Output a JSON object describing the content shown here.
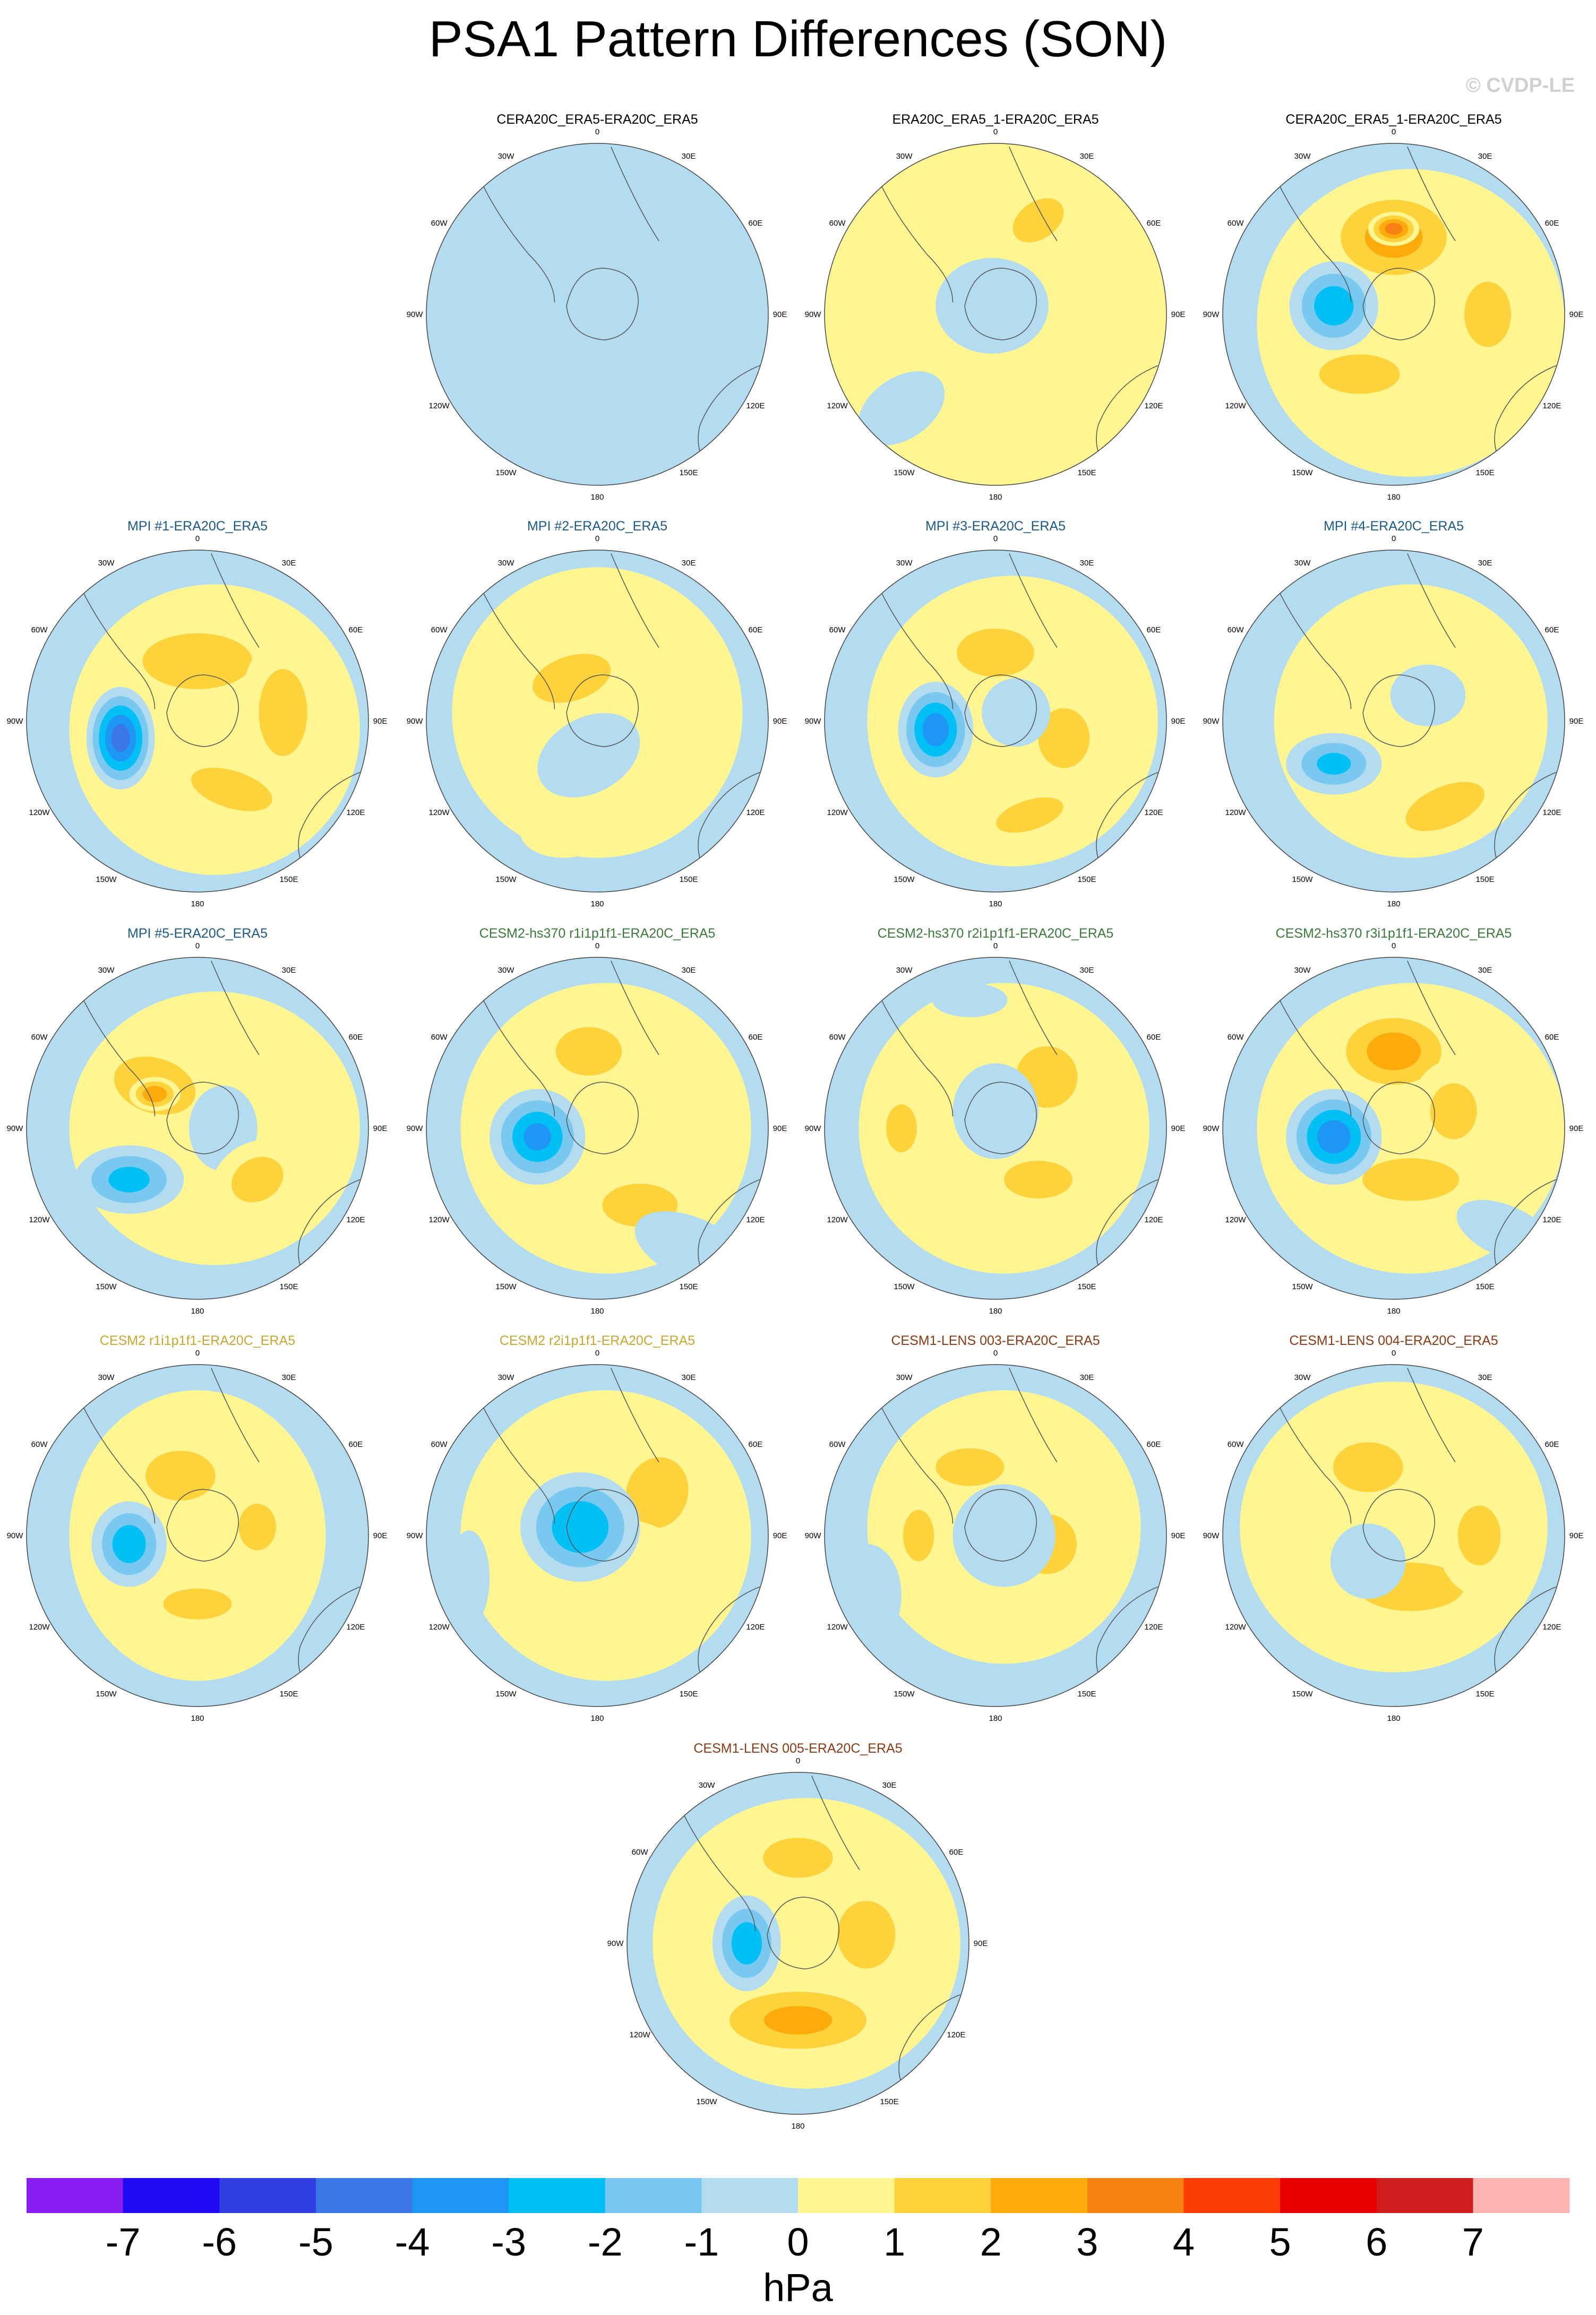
{
  "figure": {
    "title": "PSA1 Pattern Differences (SON)",
    "watermark": "© CVDP-LE",
    "longitude_labels": [
      "0",
      "30E",
      "60E",
      "90E",
      "120E",
      "150E",
      "180",
      "150W",
      "120W",
      "90W",
      "60W",
      "30W"
    ]
  },
  "colorbar": {
    "units": "hPa",
    "tick_labels": [
      "-7",
      "-6",
      "-5",
      "-4",
      "-3",
      "-2",
      "-1",
      "0",
      "1",
      "2",
      "3",
      "4",
      "5",
      "6",
      "7"
    ],
    "colors": [
      "#8a1ef2",
      "#1e0af0",
      "#2e3fe0",
      "#3a78e8",
      "#1e96f5",
      "#00c0f5",
      "#78c8f0",
      "#b4dcf0",
      "#fff591",
      "#fdd23a",
      "#fcab0a",
      "#f98012",
      "#fa3c05",
      "#e60000",
      "#d01e1e",
      "#ffb4b4"
    ]
  },
  "panels": [
    {
      "title": "CERA20C_ERA5-ERA20C_ERA5",
      "title_color": "#000000",
      "blobs": [
        [
          0.05,
          0.55,
          0.7,
          0.4,
          0.6,
          -1
        ],
        [
          0.08,
          0.22,
          0.3,
          0.22,
          0.1,
          -1.5
        ],
        [
          -0.68,
          0.18,
          0.22,
          0.5,
          0,
          -1
        ]
      ]
    },
    {
      "title": "ERA20C_ERA5_1-ERA20C_ERA5",
      "title_color": "#000000",
      "blobs": [
        [
          0,
          0,
          1,
          1,
          0,
          1
        ],
        [
          0.25,
          0.55,
          0.3,
          0.2,
          0.6,
          2.2
        ],
        [
          -0.3,
          -0.1,
          0.18,
          0.3,
          0,
          1.8
        ],
        [
          0.45,
          -0.3,
          0.22,
          0.28,
          0.4,
          1.8
        ],
        [
          -0.02,
          0.05,
          0.33,
          0.28,
          0,
          -1.5
        ],
        [
          -0.55,
          -0.55,
          0.28,
          0.18,
          0.6,
          -1.6
        ]
      ]
    },
    {
      "title": "CERA20C_ERA5_1-ERA20C_ERA5",
      "title_color": "#000000",
      "blobs": [
        [
          0.1,
          -0.05,
          0.9,
          0.9,
          0,
          1.1
        ],
        [
          0.0,
          0.45,
          0.45,
          0.32,
          0,
          3.2
        ],
        [
          0.0,
          0.5,
          0.15,
          0.1,
          0,
          4.6
        ],
        [
          0.55,
          0.0,
          0.25,
          0.35,
          0,
          2.2
        ],
        [
          -0.2,
          -0.35,
          0.45,
          0.22,
          0,
          2.1
        ],
        [
          -0.35,
          0.05,
          0.26,
          0.26,
          0,
          -3.6
        ],
        [
          -0.85,
          0.6,
          0.2,
          0.3,
          0,
          -1
        ]
      ]
    },
    {
      "title": "MPI #1-ERA20C_ERA5",
      "title_color": "#1a5a8c",
      "blobs": [
        [
          0.1,
          -0.05,
          0.85,
          0.85,
          0,
          1
        ],
        [
          0.0,
          0.35,
          0.55,
          0.28,
          0,
          2.4
        ],
        [
          0.5,
          0.05,
          0.25,
          0.45,
          0,
          2.3
        ],
        [
          0.2,
          -0.4,
          0.45,
          0.2,
          -0.3,
          2.2
        ],
        [
          -0.45,
          -0.1,
          0.2,
          0.3,
          0,
          -5.5
        ],
        [
          -0.45,
          0.78,
          0.22,
          0.1,
          0,
          -1.6
        ]
      ]
    },
    {
      "title": "MPI #2-ERA20C_ERA5",
      "title_color": "#1a5a8c",
      "blobs": [
        [
          0.0,
          0.05,
          0.85,
          0.85,
          0,
          1
        ],
        [
          -0.15,
          0.25,
          0.45,
          0.25,
          0.3,
          2.1
        ],
        [
          0.4,
          0.3,
          0.3,
          0.25,
          -0.5,
          1.9
        ],
        [
          0.05,
          -0.3,
          0.4,
          0.22,
          0,
          1.6
        ],
        [
          -0.05,
          -0.2,
          0.32,
          0.22,
          0.5,
          -1.6
        ],
        [
          -0.2,
          -0.65,
          0.25,
          0.15,
          0,
          1.8
        ]
      ]
    },
    {
      "title": "MPI #3-ERA20C_ERA5",
      "title_color": "#1a5a8c",
      "blobs": [
        [
          0.1,
          0.0,
          0.85,
          0.85,
          0,
          1
        ],
        [
          0.0,
          0.4,
          0.4,
          0.25,
          0,
          2.3
        ],
        [
          0.4,
          -0.1,
          0.3,
          0.35,
          0,
          2.0
        ],
        [
          0.2,
          -0.55,
          0.35,
          0.15,
          0.3,
          2.4
        ],
        [
          -0.35,
          -0.05,
          0.22,
          0.28,
          0,
          -4.6
        ],
        [
          0.12,
          0.05,
          0.2,
          0.2,
          0,
          -1.2
        ]
      ]
    },
    {
      "title": "MPI #4-ERA20C_ERA5",
      "title_color": "#1a5a8c",
      "blobs": [
        [
          0.1,
          0.0,
          0.8,
          0.8,
          0,
          1
        ],
        [
          0.0,
          0.3,
          0.55,
          0.22,
          0,
          1.9
        ],
        [
          0.3,
          -0.5,
          0.42,
          0.2,
          0.4,
          2.4
        ],
        [
          -0.35,
          -0.25,
          0.28,
          0.18,
          0,
          -3.1
        ],
        [
          0.2,
          0.15,
          0.22,
          0.18,
          0,
          -1.2
        ]
      ]
    },
    {
      "title": "MPI #5-ERA20C_ERA5",
      "title_color": "#1a5a8c",
      "blobs": [
        [
          0.1,
          0.0,
          0.85,
          0.8,
          0,
          1
        ],
        [
          -0.25,
          0.25,
          0.38,
          0.25,
          -0.3,
          2.8
        ],
        [
          -0.25,
          0.2,
          0.15,
          0.1,
          0,
          3.8
        ],
        [
          0.15,
          0.0,
          0.2,
          0.25,
          0,
          -1.3
        ],
        [
          -0.4,
          -0.3,
          0.32,
          0.2,
          0,
          -3.2
        ],
        [
          0.35,
          -0.3,
          0.28,
          0.22,
          0.5,
          2.3
        ]
      ]
    },
    {
      "title": "CESM2-hs370 r1i1p1f1-ERA20C_ERA5",
      "title_color": "#3a7a3a",
      "blobs": [
        [
          0.05,
          0.0,
          0.85,
          0.85,
          0,
          1
        ],
        [
          -0.05,
          0.45,
          0.3,
          0.22,
          0,
          2.8
        ],
        [
          0.25,
          -0.45,
          0.35,
          0.2,
          0,
          2.7
        ],
        [
          -0.35,
          -0.05,
          0.28,
          0.28,
          0,
          -4.2
        ],
        [
          0.55,
          -0.7,
          0.35,
          0.18,
          -0.4,
          -1.6
        ]
      ]
    },
    {
      "title": "CESM2-hs370 r2i1p1f1-ERA20C_ERA5",
      "title_color": "#3a7a3a",
      "blobs": [
        [
          0.05,
          0.0,
          0.85,
          0.85,
          0,
          1
        ],
        [
          0.3,
          0.3,
          0.3,
          0.3,
          0,
          2.5
        ],
        [
          -0.55,
          0.0,
          0.18,
          0.28,
          0,
          2.0
        ],
        [
          0.25,
          -0.3,
          0.4,
          0.22,
          0,
          2.0
        ],
        [
          0.0,
          0.1,
          0.25,
          0.28,
          0,
          -1.8
        ],
        [
          -0.15,
          0.75,
          0.22,
          0.1,
          0,
          -1.3
        ]
      ]
    },
    {
      "title": "CESM2-hs370 r3i1p1f1-ERA20C_ERA5",
      "title_color": "#3a7a3a",
      "blobs": [
        [
          0.1,
          0.0,
          0.9,
          0.85,
          0,
          1.1
        ],
        [
          0.0,
          0.45,
          0.4,
          0.28,
          0,
          3.3
        ],
        [
          0.1,
          -0.3,
          0.5,
          0.22,
          0,
          2.3
        ],
        [
          0.35,
          0.1,
          0.25,
          0.3,
          0,
          2.2
        ],
        [
          -0.35,
          -0.05,
          0.28,
          0.28,
          0,
          -4.6
        ],
        [
          0.65,
          -0.6,
          0.3,
          0.15,
          -0.4,
          -1.5
        ]
      ]
    },
    {
      "title": "CESM2 r1i1p1f1-ERA20C_ERA5",
      "title_color": "#c8a832",
      "blobs": [
        [
          0.0,
          0.0,
          0.75,
          0.85,
          0,
          1
        ],
        [
          -0.1,
          0.35,
          0.35,
          0.25,
          0,
          2.4
        ],
        [
          0.35,
          0.05,
          0.2,
          0.25,
          0,
          2.2
        ],
        [
          0.0,
          -0.4,
          0.4,
          0.18,
          0,
          2.0
        ],
        [
          -0.4,
          -0.05,
          0.22,
          0.25,
          0,
          -3.6
        ]
      ]
    },
    {
      "title": "CESM2 r2i1p1f1-ERA20C_ERA5",
      "title_color": "#c8a832",
      "blobs": [
        [
          0.05,
          0.0,
          0.85,
          0.85,
          0,
          1
        ],
        [
          0.35,
          0.25,
          0.3,
          0.35,
          -0.3,
          2.5
        ],
        [
          0.1,
          -0.2,
          0.45,
          0.3,
          0,
          1.7
        ],
        [
          -0.1,
          0.05,
          0.35,
          0.32,
          0,
          -3.8
        ],
        [
          -0.75,
          -0.25,
          0.12,
          0.28,
          0,
          -1.4
        ]
      ]
    },
    {
      "title": "CESM1-LENS 003-ERA20C_ERA5",
      "title_color": "#8c3a14",
      "blobs": [
        [
          0.05,
          0.05,
          0.8,
          0.8,
          0,
          1
        ],
        [
          -0.15,
          0.4,
          0.4,
          0.22,
          0,
          2.0
        ],
        [
          -0.45,
          0.0,
          0.15,
          0.25,
          0,
          2.5
        ],
        [
          0.3,
          -0.05,
          0.35,
          0.35,
          0,
          2.0
        ],
        [
          0.1,
          -0.45,
          0.4,
          0.15,
          0,
          1.5
        ],
        [
          0.05,
          0.0,
          0.3,
          0.3,
          0,
          -1.7
        ],
        [
          -0.75,
          -0.35,
          0.2,
          0.3,
          0,
          -1.6
        ]
      ]
    },
    {
      "title": "CESM1-LENS 004-ERA20C_ERA5",
      "title_color": "#8c3a14",
      "blobs": [
        [
          0.0,
          0.05,
          0.9,
          0.85,
          0,
          1.1
        ],
        [
          -0.15,
          0.4,
          0.35,
          0.25,
          0,
          2.4
        ],
        [
          0.1,
          -0.3,
          0.55,
          0.25,
          0,
          2.3
        ],
        [
          0.5,
          0.0,
          0.25,
          0.35,
          0,
          2.0
        ],
        [
          -0.15,
          -0.15,
          0.22,
          0.22,
          0,
          -1.5
        ]
      ]
    },
    {
      "title": "CESM1-LENS 005-ERA20C_ERA5",
      "title_color": "#8c3a14",
      "blobs": [
        [
          0.05,
          0.0,
          0.9,
          0.85,
          0,
          1.1
        ],
        [
          0.0,
          0.5,
          0.35,
          0.2,
          0,
          2.4
        ],
        [
          0.0,
          -0.45,
          0.6,
          0.25,
          0,
          3.0
        ],
        [
          0.4,
          0.05,
          0.3,
          0.35,
          0,
          2.3
        ],
        [
          -0.3,
          0.0,
          0.2,
          0.28,
          0,
          -3.6
        ]
      ]
    }
  ]
}
